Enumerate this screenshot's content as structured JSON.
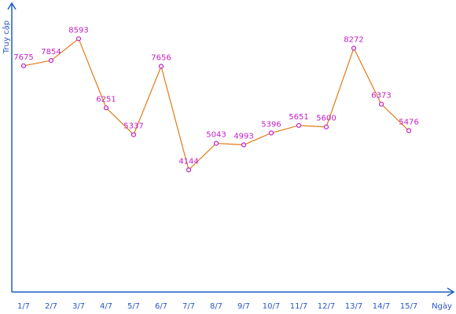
{
  "chart_data": {
    "type": "line",
    "title": "",
    "xlabel": "Ngày",
    "ylabel": "Truy cập",
    "categories": [
      "1/7",
      "2/7",
      "3/7",
      "4/7",
      "5/7",
      "6/7",
      "7/7",
      "8/7",
      "9/7",
      "10/7",
      "11/7",
      "12/7",
      "13/7",
      "14/7",
      "15/7"
    ],
    "series": [
      {
        "values": [
          7675,
          7854,
          8593,
          6251,
          5337,
          7656,
          4144,
          5043,
          4993,
          5396,
          5651,
          5600,
          8272,
          6373,
          5476
        ]
      }
    ],
    "ylim": [
      0,
      9800
    ],
    "grid": false,
    "legend": "none",
    "colors": {
      "axis": "#1f5fbf",
      "line": "#e07b18",
      "marker": "#c21ec4",
      "labels": "#2a55c4",
      "data_labels": "#c21ec4"
    }
  }
}
